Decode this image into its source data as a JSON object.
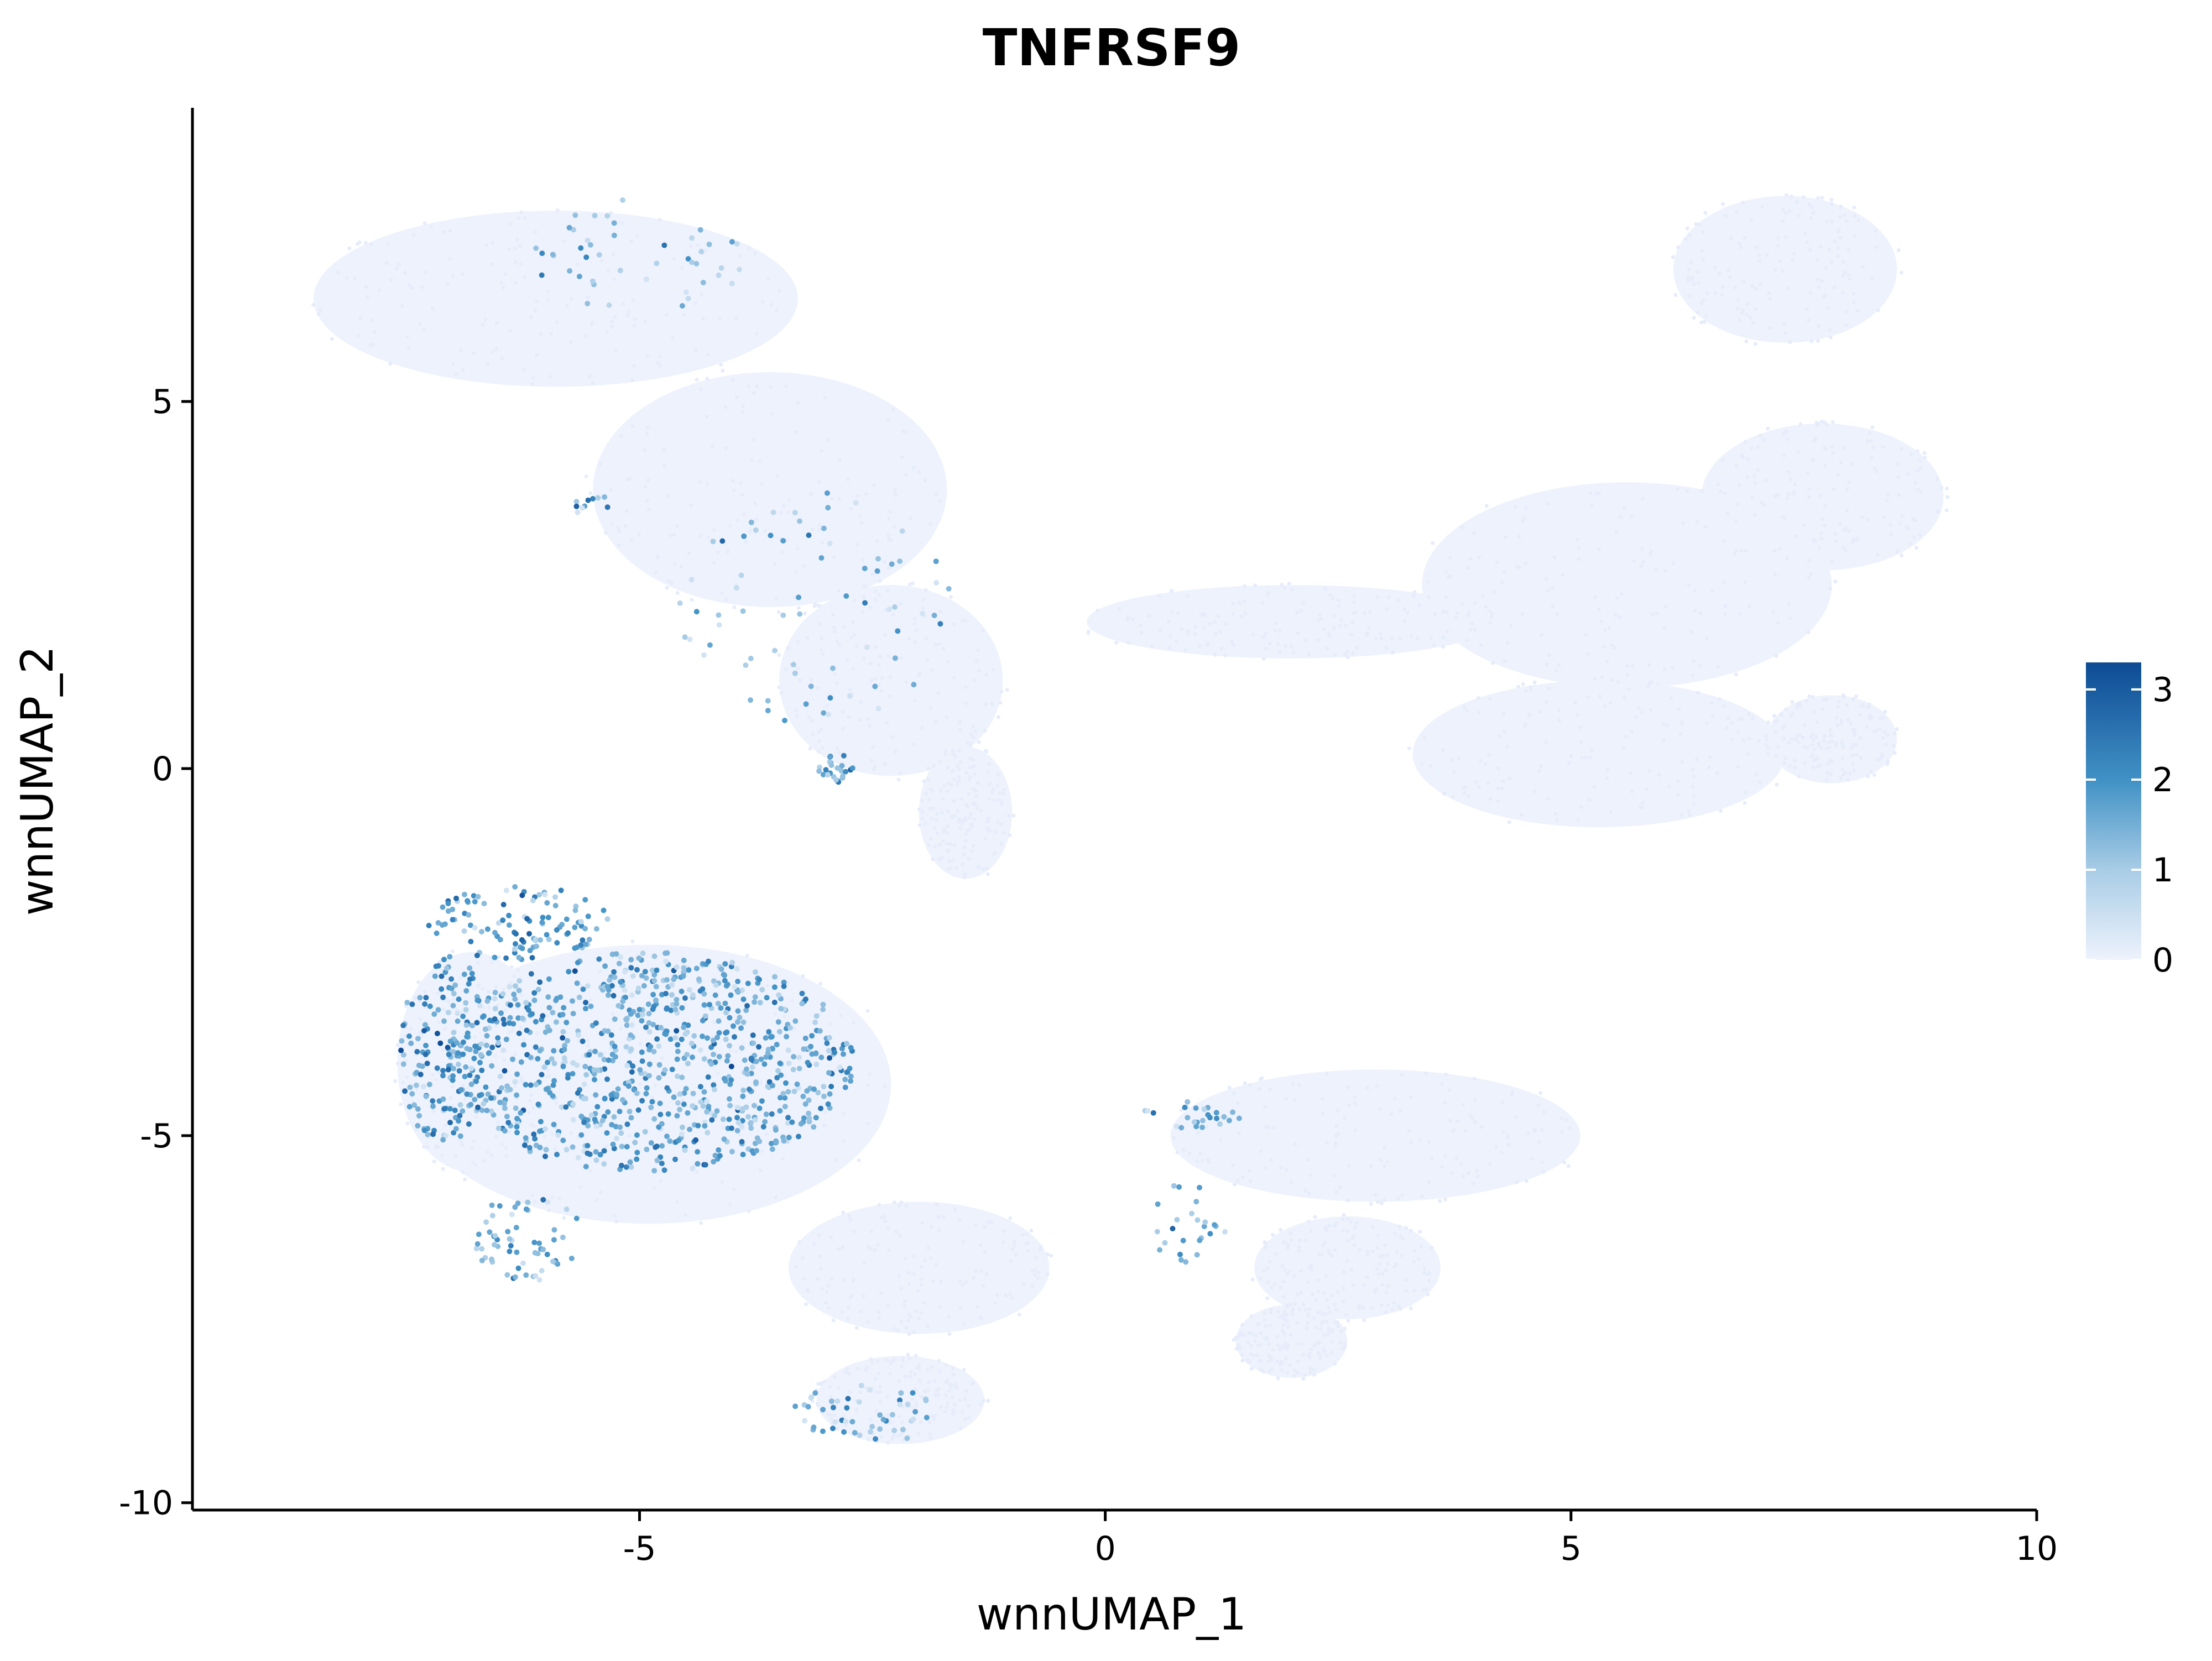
{
  "chart_data": {
    "type": "scatter",
    "title": "TNFRSF9",
    "xlabel": "wnnUMAP_1",
    "ylabel": "wnnUMAP_2",
    "xlim": [
      -9.8,
      10
    ],
    "ylim": [
      -10.1,
      9.0
    ],
    "x_ticks": [
      -5,
      0,
      5,
      10
    ],
    "x_tick_labels": [
      "-5",
      "0",
      "5",
      "10"
    ],
    "y_ticks": [
      -10,
      -5,
      0,
      5
    ],
    "y_tick_labels": [
      "-10",
      "-5",
      "0",
      "5"
    ],
    "grid": false,
    "legend_position": "right",
    "color_scale": {
      "low": "#eef2fc",
      "high": "#0d4b94",
      "min": 0,
      "max": 3.3,
      "ticks": [
        0,
        1,
        2,
        3
      ],
      "tick_labels": [
        "0",
        "1",
        "2",
        "3"
      ]
    },
    "background_regions": [
      {
        "name": "upper-left cluster",
        "cx": -5.9,
        "cy": 6.4,
        "rx": 2.6,
        "ry": 1.2
      },
      {
        "name": "upper-left cluster body",
        "cx": -3.6,
        "cy": 3.8,
        "rx": 1.9,
        "ry": 1.6
      },
      {
        "name": "upper-left cluster tail",
        "cx": -2.3,
        "cy": 1.2,
        "rx": 1.2,
        "ry": 1.3
      },
      {
        "name": "upper-left cluster tip",
        "cx": -1.5,
        "cy": -0.6,
        "rx": 0.5,
        "ry": 0.9
      },
      {
        "name": "upper-right cluster",
        "cx": 7.3,
        "cy": 6.8,
        "rx": 1.2,
        "ry": 1.0
      },
      {
        "name": "right cluster",
        "cx": 7.7,
        "cy": 3.7,
        "rx": 1.3,
        "ry": 1.0
      },
      {
        "name": "right middle cluster",
        "cx": 5.6,
        "cy": 2.5,
        "rx": 2.2,
        "ry": 1.4
      },
      {
        "name": "right lower cluster",
        "cx": 5.3,
        "cy": 0.2,
        "rx": 2.0,
        "ry": 1.0
      },
      {
        "name": "right small cluster",
        "cx": 7.8,
        "cy": 0.4,
        "rx": 0.7,
        "ry": 0.6
      },
      {
        "name": "bridge",
        "cx": 2.0,
        "cy": 2.0,
        "rx": 2.2,
        "ry": 0.5
      },
      {
        "name": "lower-left cluster",
        "cx": -4.9,
        "cy": -4.3,
        "rx": 2.6,
        "ry": 1.9
      },
      {
        "name": "lower-left edge",
        "cx": -6.8,
        "cy": -4.0,
        "rx": 0.8,
        "ry": 1.5
      },
      {
        "name": "lower-right cluster",
        "cx": 2.9,
        "cy": -5.0,
        "rx": 2.2,
        "ry": 0.9
      },
      {
        "name": "lower-right tail",
        "cx": 2.6,
        "cy": -6.8,
        "rx": 1.0,
        "ry": 0.7
      },
      {
        "name": "lower-right tip",
        "cx": 2.0,
        "cy": -7.8,
        "rx": 0.6,
        "ry": 0.5
      },
      {
        "name": "bottom cluster",
        "cx": -2.2,
        "cy": -8.6,
        "rx": 0.9,
        "ry": 0.6
      },
      {
        "name": "lower-middle",
        "cx": -2.0,
        "cy": -6.8,
        "rx": 1.4,
        "ry": 0.9
      }
    ],
    "expression_clusters": [
      {
        "cx": -4.9,
        "cy": -4.0,
        "rx": 2.2,
        "ry": 1.5,
        "n": 900,
        "mean": 1.6
      },
      {
        "cx": -7.1,
        "cy": -3.8,
        "rx": 0.5,
        "ry": 1.3,
        "n": 150,
        "mean": 1.8
      },
      {
        "cx": -6.3,
        "cy": -2.1,
        "rx": 1.0,
        "ry": 0.5,
        "n": 110,
        "mean": 1.7
      },
      {
        "cx": -6.2,
        "cy": -6.4,
        "rx": 0.6,
        "ry": 0.6,
        "n": 60,
        "mean": 1.4
      },
      {
        "cx": -2.6,
        "cy": -8.8,
        "rx": 0.8,
        "ry": 0.4,
        "n": 50,
        "mean": 1.3
      },
      {
        "cx": 0.9,
        "cy": -4.7,
        "rx": 0.6,
        "ry": 0.2,
        "n": 25,
        "mean": 1.5
      },
      {
        "cx": 0.9,
        "cy": -6.2,
        "rx": 0.4,
        "ry": 0.6,
        "n": 25,
        "mean": 1.3
      },
      {
        "cx": -2.9,
        "cy": 0.0,
        "rx": 0.2,
        "ry": 0.2,
        "n": 25,
        "mean": 1.6
      },
      {
        "cx": -5.0,
        "cy": 7.0,
        "rx": 1.2,
        "ry": 0.8,
        "n": 45,
        "mean": 1.2
      },
      {
        "cx": -3.1,
        "cy": 2.2,
        "rx": 1.5,
        "ry": 1.6,
        "n": 70,
        "mean": 1.2
      },
      {
        "cx": -5.5,
        "cy": 3.6,
        "rx": 0.2,
        "ry": 0.2,
        "n": 10,
        "mean": 1.3
      }
    ]
  }
}
